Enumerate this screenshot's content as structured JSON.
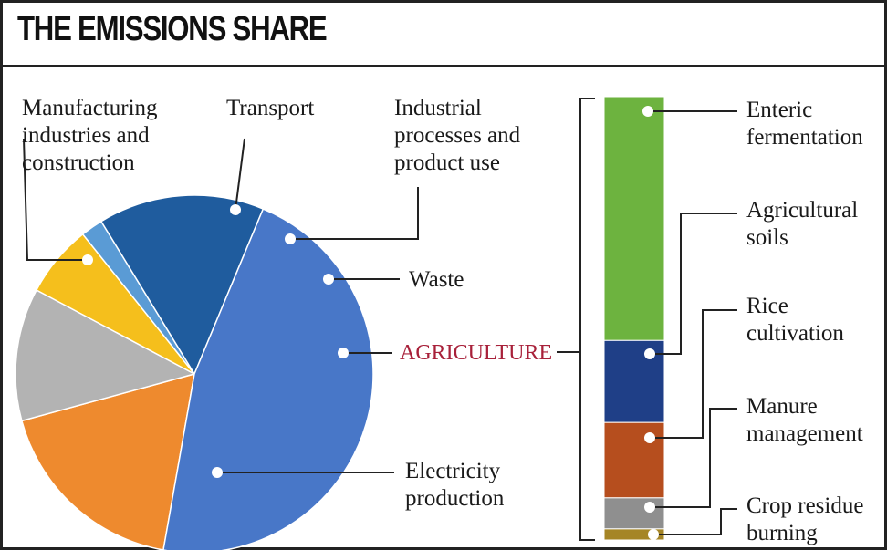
{
  "title": "THE EMISSIONS SHARE",
  "chart_data": [
    {
      "type": "pie",
      "title": "THE EMISSIONS SHARE",
      "slices": [
        {
          "label": "Manufacturing industries and construction",
          "lines": [
            "Manufacturing",
            "industries and",
            "construction"
          ],
          "value": 18.0,
          "color": "#ee8a2e"
        },
        {
          "label": "Transport",
          "lines": [
            "Transport"
          ],
          "value": 12.0,
          "color": "#b3b3b3"
        },
        {
          "label": "Industrial processes and product use",
          "lines": [
            "Industrial",
            "processes and",
            "product use"
          ],
          "value": 6.5,
          "color": "#f5bf1c"
        },
        {
          "label": "Waste",
          "lines": [
            "Waste"
          ],
          "value": 2.0,
          "color": "#5a9bd5"
        },
        {
          "label": "AGRICULTURE",
          "lines": [
            "AGRICULTURE"
          ],
          "value": 15.0,
          "color": "#1f5c9e",
          "highlight_color": "#a8213a"
        },
        {
          "label": "Electricity production",
          "lines": [
            "Electricity",
            "production"
          ],
          "value": 46.5,
          "color": "#4877c8"
        }
      ]
    },
    {
      "type": "bar",
      "stacked": true,
      "parent": "AGRICULTURE",
      "segments": [
        {
          "label": "Enteric fermentation",
          "lines": [
            "Enteric",
            "fermentation"
          ],
          "value": 55.0,
          "color": "#6db33f"
        },
        {
          "label": "Agricultural soils",
          "lines": [
            "Agricultural",
            "soils"
          ],
          "value": 18.5,
          "color": "#1f3f87"
        },
        {
          "label": "Rice cultivation",
          "lines": [
            "Rice",
            "cultivation"
          ],
          "value": 17.0,
          "color": "#b64e1e"
        },
        {
          "label": "Manure management",
          "lines": [
            "Manure",
            "management"
          ],
          "value": 7.0,
          "color": "#8f8f8f"
        },
        {
          "label": "Crop residue burning",
          "lines": [
            "Crop residue",
            "burning"
          ],
          "value": 2.5,
          "color": "#a58526"
        }
      ]
    }
  ]
}
